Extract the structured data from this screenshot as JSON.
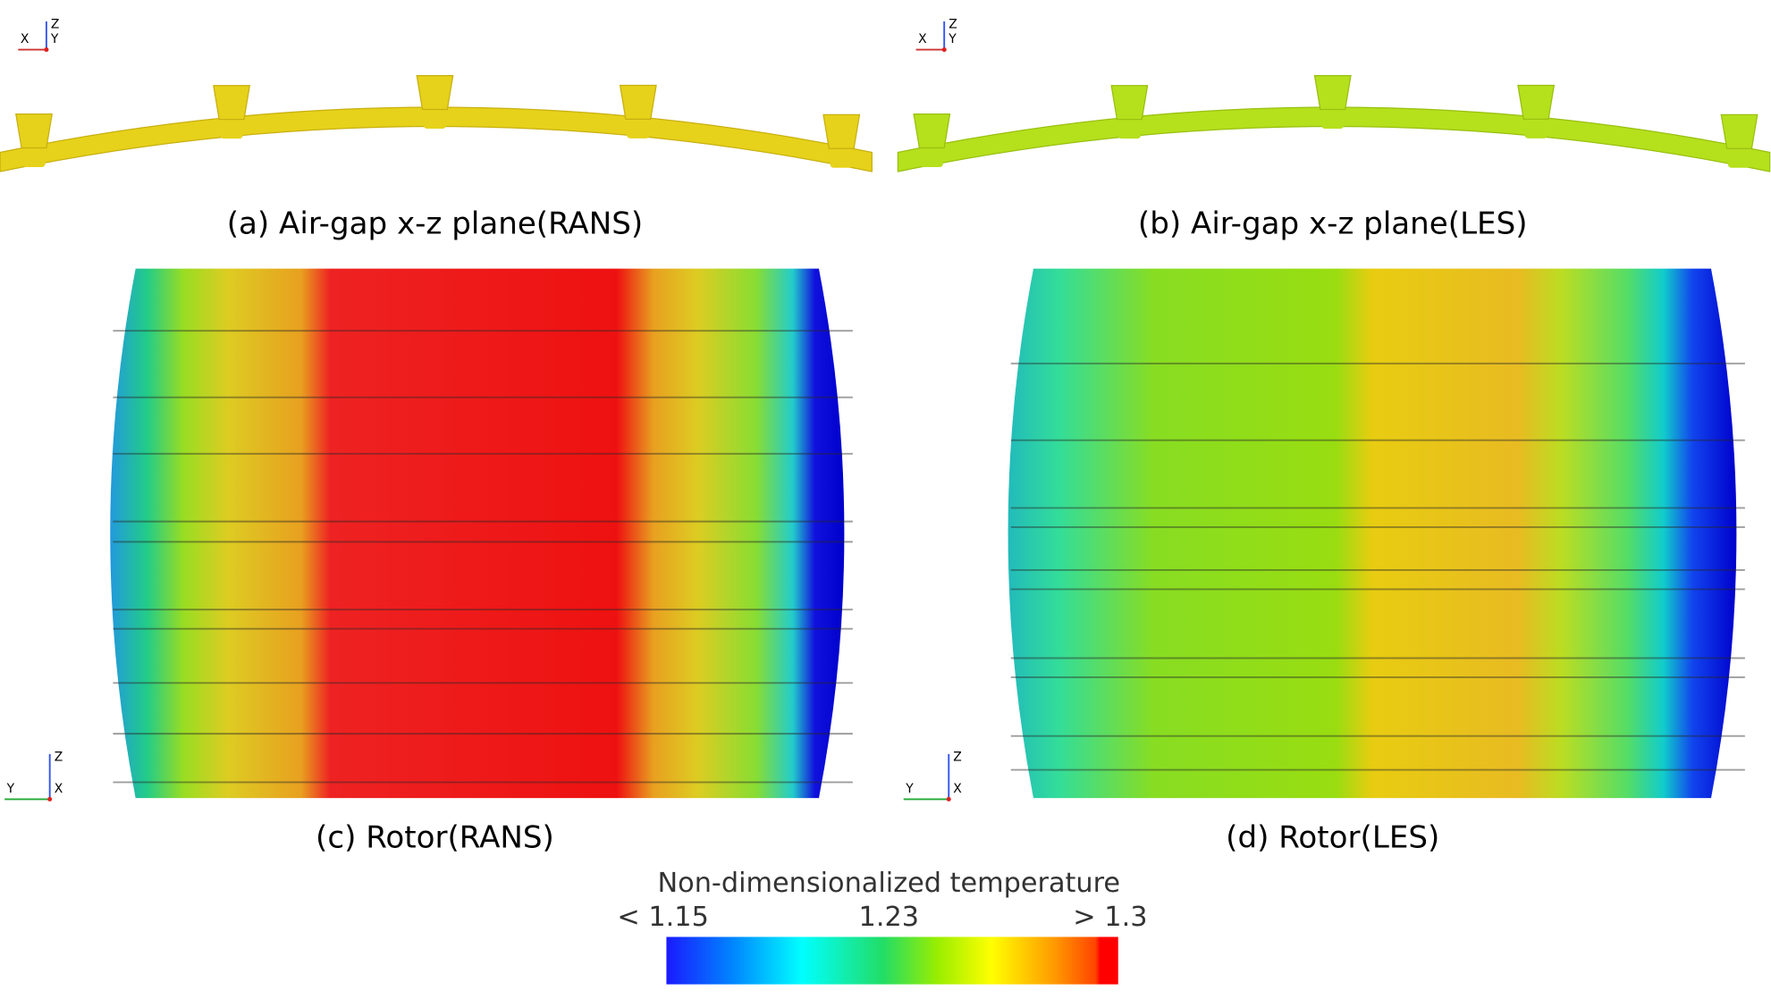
{
  "panels": [
    {
      "caption": "(a) Air-gap x-z plane(RANS)",
      "axes": [
        "X",
        "Y",
        "Z"
      ]
    },
    {
      "caption": "(b) Air-gap x-z plane(LES)",
      "axes": [
        "X",
        "Y",
        "Z"
      ]
    },
    {
      "caption": "(c) Rotor(RANS)",
      "axes": [
        "Y",
        "X",
        "Z"
      ]
    },
    {
      "caption": "(d) Rotor(LES)",
      "axes": [
        "Y",
        "X",
        "Z"
      ]
    }
  ],
  "legend": {
    "title": "Non-dimensionalized temperature",
    "labels": [
      "< 1.15",
      "1.23",
      "> 1.3"
    ]
  }
}
